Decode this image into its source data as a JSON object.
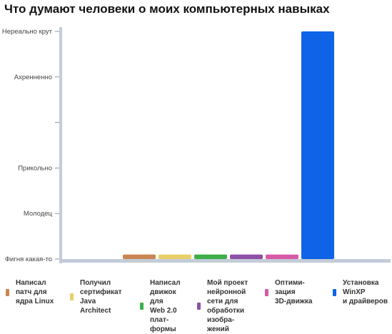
{
  "chart_data": {
    "type": "bar",
    "title": "Что думают человеки о моих компьютерных навыках",
    "xlabel": "",
    "ylabel": "",
    "y_levels": [
      "Фигня какая-то",
      "Молодец",
      "Прикольно",
      "",
      "Ахренненно",
      "Нереально крут"
    ],
    "ylim": [
      0,
      5
    ],
    "grid": false,
    "legend_position": "bottom",
    "categories": [
      "Написал патч для ядра Linux",
      "Получил сертификат Java Architect",
      "Написал движок для Web 2.0 платформы",
      "Мой проект нейронной сети для обработки изображений",
      "Оптимизация 3D-движка",
      "Установка WinXP и драйверов"
    ],
    "legend_labels": [
      "Написал\nпатч для\nядра Linux",
      "Получил\nсертификат\nJava\nArchitect",
      "Написал\nдвижок\nдля\nWeb 2.0\nплат-\nформы",
      "Мой проект\nнейронной\nсети для\nобработки\nизобра-\nжений",
      "Оптими-\nзация\n3D-движка",
      "Установка\nWinXP\nи драйверов"
    ],
    "values": [
      0.1,
      0.1,
      0.1,
      0.1,
      0.1,
      5
    ],
    "colors": [
      "#c98552",
      "#e8cf6a",
      "#3fae4a",
      "#8e4fa6",
      "#d65aa6",
      "#0e63e6"
    ]
  }
}
